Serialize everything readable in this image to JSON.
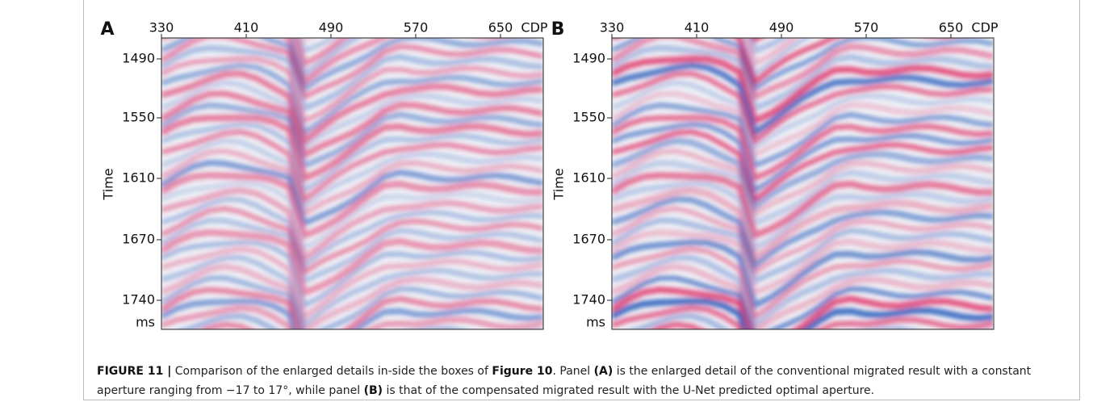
{
  "panels": [
    {
      "label": "A",
      "x_ticks": [
        "330",
        "410",
        "490",
        "570",
        "650"
      ],
      "x_unit": "CDP",
      "y_label": "Time",
      "y_ticks": [
        "1490",
        "1550",
        "1610",
        "1670",
        "1740"
      ],
      "y_unit": "ms"
    },
    {
      "label": "B",
      "x_ticks": [
        "330",
        "410",
        "490",
        "570",
        "650"
      ],
      "x_unit": "CDP",
      "y_label": "Time",
      "y_ticks": [
        "1490",
        "1550",
        "1610",
        "1670",
        "1740"
      ],
      "y_unit": "ms"
    }
  ],
  "caption": [
    {
      "text": "FIGURE 11 |",
      "bold": true
    },
    {
      "text": " Comparison of the enlarged details in-side the boxes of ",
      "bold": false
    },
    {
      "text": "Figure 10",
      "bold": true
    },
    {
      "text": ". Panel ",
      "bold": false
    },
    {
      "text": "(A)",
      "bold": true
    },
    {
      "text": " is the enlarged detail of the conventional migrated result with a constant aperture ranging from −17 to 17°, while panel ",
      "bold": false
    },
    {
      "text": "(B)",
      "bold": true
    },
    {
      "text": " is that of the compensated migrated result with the U-Net predicted optimal aperture.",
      "bold": false
    }
  ]
}
